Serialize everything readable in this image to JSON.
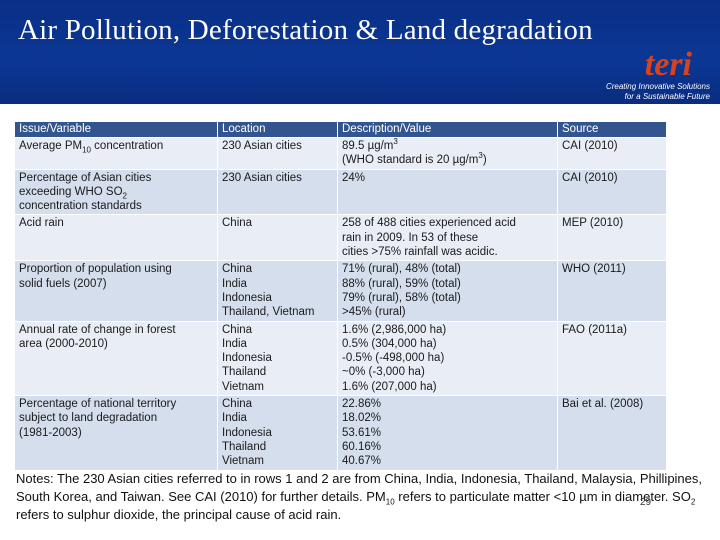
{
  "slide": {
    "title": "Air Pollution, Deforestation & Land degradation",
    "logo": {
      "word": "teri",
      "tagline_1": "Creating Innovative Solutions",
      "tagline_2": "for a Sustainable Future"
    },
    "page_number": "29"
  },
  "table": {
    "headers": [
      "Issue/Variable",
      "Location",
      "Description/Value",
      "Source"
    ],
    "row1": {
      "issue_pre": "Average PM",
      "issue_sub": "10",
      "issue_post": " concentration",
      "location": "230 Asian cities",
      "desc1_pre": "89.5 µg/m",
      "desc1_sup": "3",
      "desc2_pre": "(WHO standard is 20 µg/m",
      "desc2_sup": "3",
      "desc2_post": ")",
      "source": "CAI (2010)"
    },
    "row2": {
      "issue_1": "Percentage of Asian cities",
      "issue_2_pre": "exceeding WHO SO",
      "issue_2_sub": "2",
      "issue_3": "concentration standards",
      "location": "230 Asian cities",
      "desc": "24%",
      "source": "CAI (2010)"
    },
    "row3": {
      "issue": "Acid rain",
      "location": "China",
      "desc": [
        "258 of 488 cities experienced acid",
        "rain in 2009. In 53 of these",
        "cities >75% rainfall was acidic."
      ],
      "source": "MEP (2010)"
    },
    "row4": {
      "issue": [
        "Proportion of population using",
        "solid fuels (2007)"
      ],
      "locations": [
        "China",
        "India",
        "Indonesia",
        "Thailand, Vietnam"
      ],
      "values": [
        "71% (rural), 48% (total)",
        "88% (rural), 59% (total)",
        "79% (rural), 58% (total)",
        ">45% (rural)"
      ],
      "source": "WHO (2011)"
    },
    "row5": {
      "issue": [
        "Annual rate of change in forest",
        "area (2000-2010)"
      ],
      "locations": [
        "China",
        "India",
        "Indonesia",
        "Thailand",
        "Vietnam"
      ],
      "values": [
        "1.6% (2,986,000 ha)",
        "0.5% (304,000 ha)",
        "-0.5% (-498,000 ha)",
        "~0% (-3,000 ha)",
        "1.6% (207,000 ha)"
      ],
      "source": "FAO (2011a)"
    },
    "row6": {
      "issue": [
        "Percentage of national territory",
        "subject to land degradation",
        "(1981-2003)"
      ],
      "locations": [
        "China",
        "India",
        "Indonesia",
        "Thailand",
        "Vietnam"
      ],
      "values": [
        "22.86%",
        "18.02%",
        "53.61%",
        "60.16%",
        "40.67%"
      ],
      "source": "Bai et al. (2008)"
    }
  },
  "notes": {
    "part1": "Notes: The 230 Asian cities referred to in rows 1 and 2 are from China, India, Indonesia, Thailand, Malaysia, Phillipines, South Korea, and Taiwan. See CAI (2010) for further details. PM",
    "sub1": "10",
    "part2": " refers to particulate matter <10 µm in diameter. SO",
    "sub2": "2",
    "part3": " refers to sulphur dioxide, the principal cause of acid rain."
  }
}
